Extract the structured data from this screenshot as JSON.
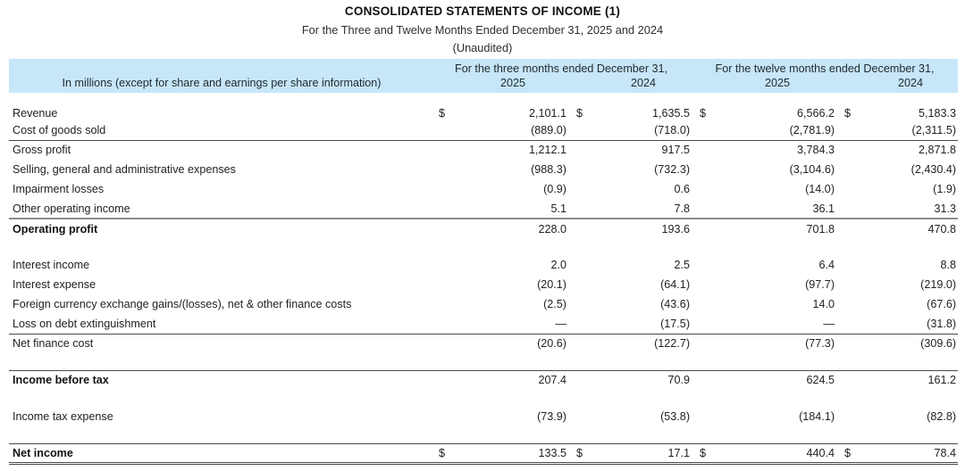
{
  "page": {
    "title": "CONSOLIDATED STATEMENTS OF INCOME (1)",
    "subtitle": "For the Three and Twelve Months Ended December 31, 2025 and 2024",
    "unaudited_note": "(Unaudited)"
  },
  "table": {
    "currency_symbol": "$",
    "header": {
      "units_note": "In millions (except for share and earnings per share information)",
      "groups": [
        {
          "label": "For the three months ended December 31,",
          "years": [
            "2025",
            "2024"
          ]
        },
        {
          "label": "For the twelve months ended December 31,",
          "years": [
            "2025",
            "2024"
          ]
        }
      ]
    },
    "rows": [
      {
        "label": "Revenue",
        "dollar": true,
        "values": [
          "2,101.1",
          "1,635.5",
          "6,566.2",
          "5,183.3"
        ]
      },
      {
        "label": "Cost of goods sold",
        "values": [
          "(889.0)",
          "(718.0)",
          "(2,781.9)",
          "(2,311.5)"
        ],
        "border_bottom": "thin"
      },
      {
        "label": "Gross profit",
        "values": [
          "1,212.1",
          "917.5",
          "3,784.3",
          "2,871.8"
        ]
      },
      {
        "label": "Selling, general and administrative expenses",
        "values": [
          "(988.3)",
          "(732.3)",
          "(3,104.6)",
          "(2,430.4)"
        ]
      },
      {
        "label": "Impairment losses",
        "values": [
          "(0.9)",
          "0.6",
          "(14.0)",
          "(1.9)"
        ]
      },
      {
        "label": "Other operating income",
        "values": [
          "5.1",
          "7.8",
          "36.1",
          "31.3"
        ],
        "border_bottom": "medium"
      },
      {
        "label": "Operating profit",
        "bold": true,
        "values": [
          "228.0",
          "193.6",
          "701.8",
          "470.8"
        ]
      },
      {
        "spacer": true
      },
      {
        "label": "Interest income",
        "values": [
          "2.0",
          "2.5",
          "6.4",
          "8.8"
        ]
      },
      {
        "label": "Interest expense",
        "values": [
          "(20.1)",
          "(64.1)",
          "(97.7)",
          "(219.0)"
        ]
      },
      {
        "label": "Foreign currency exchange gains/(losses), net & other finance costs",
        "values": [
          "(2.5)",
          "(43.6)",
          "14.0",
          "(67.6)"
        ]
      },
      {
        "label": "Loss on debt extinguishment",
        "values": [
          "—",
          "(17.5)",
          "—",
          "(31.8)"
        ],
        "border_bottom": "thin"
      },
      {
        "label": "Net finance cost",
        "values": [
          "(20.6)",
          "(122.7)",
          "(77.3)",
          "(309.6)"
        ]
      },
      {
        "spacer": true,
        "border_bottom": "thin"
      },
      {
        "label": "Income before tax",
        "bold": true,
        "values": [
          "207.4",
          "70.9",
          "624.5",
          "161.2"
        ]
      },
      {
        "spacer": true
      },
      {
        "label": "Income tax expense",
        "values": [
          "(73.9)",
          "(53.8)",
          "(184.1)",
          "(82.8)"
        ]
      },
      {
        "spacer": true,
        "border_bottom": "thin"
      },
      {
        "label": "Net income",
        "bold": true,
        "dollar": true,
        "values": [
          "133.5",
          "17.1",
          "440.4",
          "78.4"
        ],
        "border_bottom": "double"
      }
    ]
  },
  "colors": {
    "header_background": "#c7e6f7",
    "text": "#1f1f1f",
    "thin_rule": "#4a4a4a",
    "medium_rule": "#8d8d8d"
  }
}
